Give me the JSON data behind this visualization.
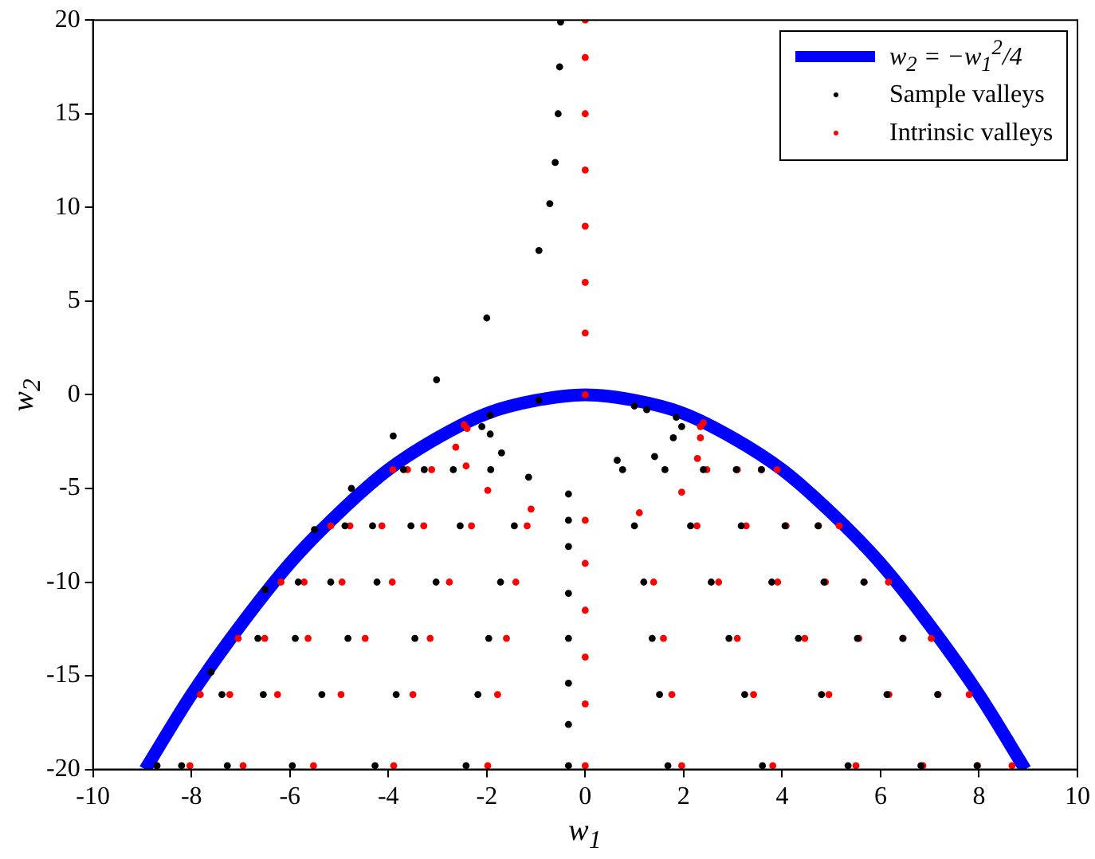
{
  "chart_data": {
    "type": "scatter",
    "xlabel": "w$_{1}$",
    "ylabel": "w$_{2}$",
    "xlim": [
      -10,
      10
    ],
    "xticks": [
      -10,
      -8,
      -6,
      -4,
      -2,
      0,
      2,
      4,
      6,
      8,
      10
    ],
    "ylim": [
      -20,
      20
    ],
    "yticks": [
      -20,
      -15,
      -10,
      -5,
      0,
      5,
      10,
      15,
      20
    ],
    "grid": false,
    "legend": "top right",
    "series": [
      {
        "name": "w$_{2}$ = −w$_{1}$$^{2}$/4",
        "type": "line",
        "color": "#0000ff",
        "marker": "none",
        "line_style": "solid",
        "x": [
          -8.94,
          -8,
          -7,
          -6,
          -5,
          -4,
          -3,
          -2,
          -1,
          0,
          1,
          2,
          3,
          4,
          5,
          6,
          7,
          8,
          8.94
        ],
        "values": [
          -20,
          -16,
          -12.3,
          -9,
          -6.3,
          -4,
          -2.3,
          -1,
          -0.3,
          0,
          -0.3,
          -1,
          -2.3,
          -4,
          -6.3,
          -9,
          -12.3,
          -16,
          -20
        ]
      },
      {
        "name": "Sample valleys",
        "type": "scatter",
        "color": "#000000",
        "marker": "circle",
        "x": [
          -8.7,
          -7.6,
          -6.5,
          -5.5,
          -4.75,
          -3.9,
          -3.02,
          -2,
          -0.94,
          -0.72,
          -0.61,
          -0.55,
          -0.52,
          -0.5,
          -1.93,
          -3.69,
          -4.88,
          -5.83,
          -6.65,
          -7.38,
          -8.2,
          -2.1,
          -3.27,
          -4.32,
          -5.17,
          -5.89,
          -6.54,
          -7.27,
          -1.93,
          -2.68,
          -3.54,
          -4.23,
          -4.82,
          -5.35,
          -5.95,
          -1.7,
          -1.92,
          -2.54,
          -3.03,
          -3.46,
          -3.84,
          -4.27,
          -1.15,
          -1.44,
          -1.72,
          -1.96,
          -2.18,
          -2.42,
          -0.34,
          -0.34,
          -0.34,
          -0.34,
          -0.34,
          -0.34,
          -0.34,
          -0.34,
          -0.94,
          1.25,
          1.0,
          0.65,
          0.76,
          1.0,
          1.19,
          1.36,
          1.51,
          1.68,
          1.41,
          1.62,
          2.14,
          2.56,
          2.92,
          3.24,
          3.6,
          1.79,
          2.4,
          3.17,
          3.79,
          4.33,
          4.8,
          5.34,
          1.96,
          3.07,
          4.06,
          4.85,
          5.53,
          6.13,
          6.82,
          1.85,
          3.58,
          4.73,
          5.66,
          6.45,
          7.16,
          7.96
        ],
        "values": [
          -19.8,
          -14.8,
          -10.4,
          -7.2,
          -5,
          -2.2,
          0.8,
          4.1,
          7.7,
          10.2,
          12.4,
          15,
          17.5,
          19.9,
          -1.1,
          -4,
          -7,
          -10,
          -13,
          -16,
          -19.8,
          -1.7,
          -4,
          -7,
          -10,
          -13,
          -16,
          -19.8,
          -2.1,
          -4,
          -7,
          -10,
          -13,
          -16,
          -19.8,
          -3.1,
          -4,
          -7,
          -10,
          -13,
          -16,
          -19.8,
          -4.4,
          -7,
          -10,
          -13,
          -16,
          -19.8,
          -5.3,
          -6.7,
          -8.1,
          -10.6,
          -13,
          -15.4,
          -17.6,
          -19.8,
          -0.3,
          -0.8,
          -0.6,
          -3.5,
          -4,
          -7,
          -10,
          -13,
          -16,
          -19.8,
          -3.3,
          -4,
          -7,
          -10,
          -13,
          -16,
          -19.8,
          -2.3,
          -4,
          -7,
          -10,
          -13,
          -16,
          -19.8,
          -1.7,
          -4,
          -7,
          -10,
          -13,
          -16,
          -19.8,
          -1.2,
          -4,
          -7,
          -10,
          -13,
          -16,
          -19.8
        ]
      },
      {
        "name": "Intrinsic valleys",
        "type": "scatter",
        "color": "#ff0000",
        "marker": "circle",
        "x": [
          -2.46,
          -3.91,
          -5.17,
          -6.18,
          -7.05,
          -7.82,
          -8.7,
          -2.4,
          -3.61,
          -4.78,
          -5.71,
          -6.51,
          -7.22,
          -8.03,
          -2.63,
          -3.12,
          -4.13,
          -4.94,
          -5.63,
          -6.25,
          -6.95,
          -2.42,
          -3.28,
          -3.92,
          -4.47,
          -4.96,
          -5.52,
          -1.98,
          -2.31,
          -2.76,
          -3.15,
          -3.5,
          -3.89,
          -1.1,
          -1.18,
          -1.41,
          -1.6,
          -1.78,
          -1.98,
          0,
          0,
          0,
          0,
          0,
          0,
          0,
          0,
          0,
          0,
          0,
          0,
          0,
          0,
          1.1,
          1.39,
          1.59,
          1.76,
          1.96,
          1.96,
          2.27,
          2.71,
          3.09,
          3.42,
          3.81,
          2.28,
          2.47,
          3.27,
          3.91,
          4.46,
          4.95,
          5.5,
          2.34,
          3.09,
          4.08,
          4.88,
          5.56,
          6.17,
          6.86,
          2.34,
          3.58,
          4.74,
          5.67,
          6.46,
          7.17,
          7.97,
          2.4,
          3.9,
          5.16,
          6.16,
          7.03,
          7.8,
          8.67
        ],
        "values": [
          -1.6,
          -4,
          -7,
          -10,
          -13,
          -16,
          -19.8,
          -1.8,
          -4,
          -7,
          -10,
          -13,
          -16,
          -19.8,
          -2.8,
          -4,
          -7,
          -10,
          -13,
          -16,
          -19.8,
          -3.8,
          -7,
          -10,
          -13,
          -16,
          -19.8,
          -5.1,
          -7,
          -10,
          -13,
          -16,
          -19.8,
          -6.1,
          -7,
          -10,
          -13,
          -16,
          -19.8,
          -6.7,
          -9,
          -11.5,
          -14,
          -16.5,
          -19.8,
          0,
          3.3,
          6,
          9,
          12,
          15,
          18,
          20,
          -6.3,
          -10,
          -13,
          -16,
          -19.8,
          -5.2,
          -7,
          -10,
          -13,
          -16,
          -19.8,
          -3.4,
          -4,
          -7,
          -10,
          -13,
          -16,
          -19.8,
          -2.3,
          -4,
          -7,
          -10,
          -13,
          -16,
          -19.8,
          -1.7,
          -4,
          -7,
          -10,
          -13,
          -16,
          -19.8,
          -1.5,
          -4,
          -7,
          -10,
          -13,
          -16,
          -19.8
        ]
      }
    ]
  }
}
